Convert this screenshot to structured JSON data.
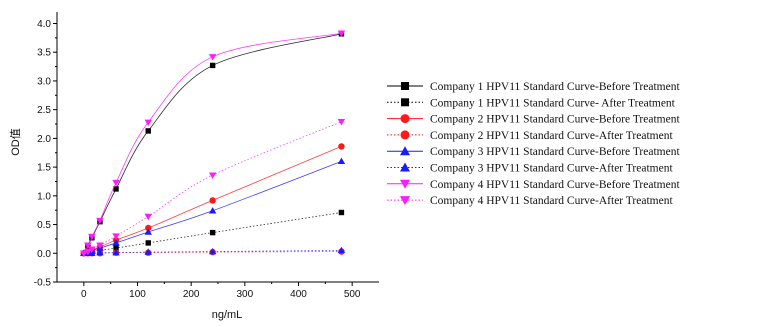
{
  "chart_data": {
    "type": "line",
    "xlabel": "ng/mL",
    "ylabel": "OD值",
    "xlim": [
      -50,
      550
    ],
    "ylim": [
      -0.5,
      4.2
    ],
    "xticks": [
      0,
      100,
      200,
      300,
      400,
      500
    ],
    "yticks": [
      -0.5,
      0.0,
      0.5,
      1.0,
      1.5,
      2.0,
      2.5,
      3.0,
      3.5,
      4.0
    ],
    "xtick_labels": [
      "0",
      "100",
      "200",
      "300",
      "400",
      "500"
    ],
    "ytick_labels": [
      "-0.5",
      "0.0",
      "0.5",
      "1.0",
      "1.5",
      "2.0",
      "2.5",
      "3.0",
      "3.5",
      "4.0"
    ],
    "grid": false,
    "legend_position": "right",
    "x": [
      0,
      7.5,
      15,
      30,
      60,
      120,
      240,
      480
    ],
    "series": [
      {
        "name": "Company 1 HPV11 Standard Curve-Before Treatment",
        "color": "#000000",
        "marker": "square",
        "line": "solid",
        "values": [
          0.0,
          0.13,
          0.27,
          0.55,
          1.12,
          2.13,
          3.27,
          3.82
        ]
      },
      {
        "name": "Company 1 HPV11 Standard Curve- After Treatment",
        "color": "#000000",
        "marker": "square",
        "line": "dotted",
        "values": [
          0.0,
          0.01,
          0.03,
          0.05,
          0.09,
          0.18,
          0.36,
          0.71
        ]
      },
      {
        "name": "Company 2 HPV11 Standard Curve-Before Treatment",
        "color": "#ff1a1a",
        "marker": "circle",
        "line": "solid",
        "values": [
          0.0,
          0.03,
          0.06,
          0.11,
          0.23,
          0.44,
          0.92,
          1.86
        ]
      },
      {
        "name": "Company 2 HPV11 Standard Curve-After Treatment",
        "color": "#ff1a1a",
        "marker": "circle",
        "line": "dotted",
        "values": [
          0.0,
          0.0,
          0.0,
          0.0,
          0.01,
          0.01,
          0.02,
          0.03
        ]
      },
      {
        "name": "Company 3 HPV11 Standard Curve-Before Treatment",
        "color": "#1a1aff",
        "marker": "triangle-up",
        "line": "solid",
        "values": [
          0.0,
          0.02,
          0.05,
          0.09,
          0.18,
          0.37,
          0.74,
          1.6
        ]
      },
      {
        "name": "Company 3 HPV11 Standard Curve-After Treatment",
        "color": "#1a1aff",
        "marker": "triangle-up",
        "line": "dotted",
        "values": [
          0.0,
          0.0,
          0.0,
          0.01,
          0.01,
          0.02,
          0.03,
          0.05
        ]
      },
      {
        "name": "Company 4 HPV11 Standard Curve-Before Treatment",
        "color": "#ff1aff",
        "marker": "triangle-down",
        "line": "solid",
        "values": [
          0.0,
          0.14,
          0.29,
          0.57,
          1.23,
          2.28,
          3.42,
          3.83
        ]
      },
      {
        "name": "Company 4 HPV11 Standard Curve-After Treatment",
        "color": "#ff1aff",
        "marker": "triangle-down",
        "line": "dotted",
        "values": [
          0.0,
          0.03,
          0.07,
          0.14,
          0.3,
          0.64,
          1.36,
          2.29
        ]
      }
    ]
  }
}
